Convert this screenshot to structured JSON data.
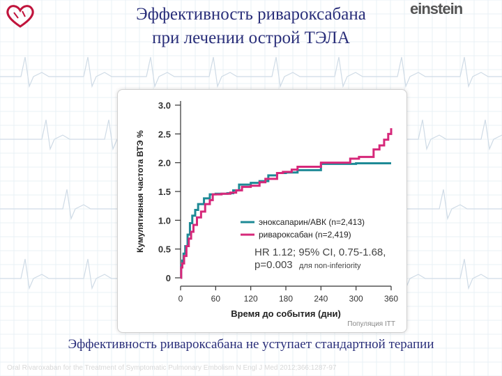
{
  "slide": {
    "title_line1": "Эффективность ривароксабана",
    "title_line2": "при лечении острой ТЭЛА",
    "logo_right_text": "einstein",
    "population_note": "Популяция ITT",
    "bottom_text": "Эффективность ривароксабана не уступает стандартной терапии",
    "citation": "Oral Rivaroxaban for the Treatment of Symptomatic Pulmonary Embolism N Engl J Med 2012;366:1287-97",
    "colors": {
      "title": "#2a2f7a",
      "logo_accent": "#c0143c"
    }
  },
  "chart_data": {
    "type": "line",
    "xlabel": "Время до события (дни)",
    "ylabel": "Кумулятивная частота ВТЭ %",
    "xlim": [
      0,
      360
    ],
    "ylim": [
      0,
      3.0
    ],
    "x_ticks": [
      0,
      60,
      120,
      180,
      240,
      300,
      360
    ],
    "x_tick_labels": [
      "0",
      "60",
      "120",
      "180",
      "240",
      "300",
      "360"
    ],
    "y_ticks": [
      0,
      0.5,
      1.0,
      1.5,
      2.0,
      2.5,
      3.0
    ],
    "y_tick_labels": [
      "0",
      "0.5",
      "1.0",
      "1.5",
      "2.0",
      "2.5",
      "3.0"
    ],
    "grid": false,
    "legend_position": "bottom-right",
    "series": [
      {
        "name": "эноксапарин/АВК (n=2,413)",
        "color": "#1e8a96",
        "points": [
          [
            0,
            0
          ],
          [
            1,
            0.22
          ],
          [
            3,
            0.3
          ],
          [
            5,
            0.42
          ],
          [
            8,
            0.55
          ],
          [
            12,
            0.75
          ],
          [
            16,
            0.95
          ],
          [
            20,
            1.08
          ],
          [
            25,
            1.18
          ],
          [
            30,
            1.28
          ],
          [
            40,
            1.38
          ],
          [
            50,
            1.45
          ],
          [
            60,
            1.46
          ],
          [
            80,
            1.47
          ],
          [
            90,
            1.52
          ],
          [
            100,
            1.62
          ],
          [
            120,
            1.65
          ],
          [
            135,
            1.68
          ],
          [
            150,
            1.78
          ],
          [
            165,
            1.82
          ],
          [
            180,
            1.83
          ],
          [
            200,
            1.87
          ],
          [
            240,
            1.98
          ],
          [
            300,
            1.99
          ],
          [
            360,
            1.99
          ]
        ]
      },
      {
        "name": "ривароксабан (n=2,419)",
        "color": "#d6287a",
        "points": [
          [
            0,
            0
          ],
          [
            1,
            0.18
          ],
          [
            3,
            0.25
          ],
          [
            6,
            0.38
          ],
          [
            10,
            0.55
          ],
          [
            14,
            0.68
          ],
          [
            18,
            0.8
          ],
          [
            22,
            0.92
          ],
          [
            28,
            1.05
          ],
          [
            35,
            1.15
          ],
          [
            42,
            1.28
          ],
          [
            50,
            1.35
          ],
          [
            55,
            1.45
          ],
          [
            70,
            1.46
          ],
          [
            85,
            1.48
          ],
          [
            95,
            1.52
          ],
          [
            105,
            1.58
          ],
          [
            120,
            1.6
          ],
          [
            135,
            1.66
          ],
          [
            145,
            1.72
          ],
          [
            165,
            1.82
          ],
          [
            175,
            1.84
          ],
          [
            190,
            1.88
          ],
          [
            200,
            1.93
          ],
          [
            240,
            2.0
          ],
          [
            290,
            2.07
          ],
          [
            305,
            2.1
          ],
          [
            330,
            2.23
          ],
          [
            340,
            2.3
          ],
          [
            348,
            2.4
          ],
          [
            355,
            2.5
          ],
          [
            360,
            2.6
          ]
        ]
      }
    ],
    "annotation_lines": [
      "HR 1.12; 95% CI, 0.75-1.68,",
      "p=0.003",
      "для non-inferiority"
    ]
  }
}
